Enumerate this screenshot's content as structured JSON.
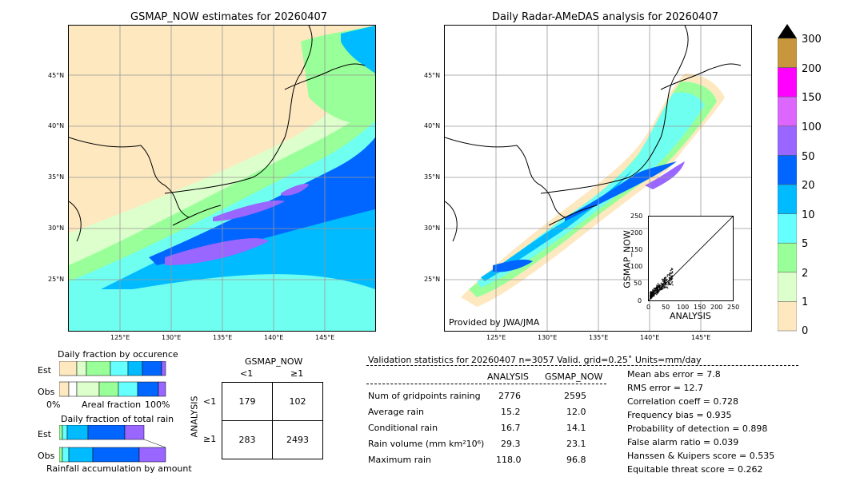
{
  "left_map": {
    "title": "GSMAP_NOW estimates for 20260407",
    "lat_labels": [
      "45°N",
      "40°N",
      "35°N",
      "30°N",
      "25°N"
    ],
    "lon_labels": [
      "125°E",
      "130°E",
      "135°E",
      "140°E",
      "145°E"
    ]
  },
  "right_map": {
    "title": "Daily Radar-AMeDAS analysis for 20260407",
    "lat_labels": [
      "45°N",
      "40°N",
      "35°N",
      "30°N",
      "25°N"
    ],
    "lon_labels": [
      "125°E",
      "130°E",
      "135°E",
      "140°E",
      "145°E"
    ],
    "credit": "Provided by JWA/JMA"
  },
  "colorbar": {
    "labels": [
      "300",
      "200",
      "150",
      "100",
      "50",
      "20",
      "10",
      "5",
      "2",
      "1",
      "0"
    ],
    "colors": [
      "#c8963c",
      "#ff00ff",
      "#dd66ff",
      "#9966ff",
      "#0066ff",
      "#00bbff",
      "#66ffff",
      "#99ff99",
      "#ddffcc",
      "#fde8bf"
    ]
  },
  "scatter": {
    "ylabel": "GSMAP_NOW",
    "xlabel": "ANALYSIS",
    "ticks": [
      "0",
      "50",
      "100",
      "150",
      "200",
      "250"
    ]
  },
  "fraction_occurrence": {
    "title": "Daily fraction by occurence",
    "rows": [
      "Est",
      "Obs"
    ],
    "left": "0%",
    "mid": "Areal fraction",
    "right": "100%"
  },
  "fraction_total": {
    "title": "Daily fraction of total rain",
    "rows": [
      "Est",
      "Obs"
    ],
    "footer": "Rainfall accumulation by amount"
  },
  "contingency": {
    "header": "GSMAP_NOW",
    "cols": [
      "<1",
      "≥1"
    ],
    "rows": [
      "<1",
      "≥1"
    ],
    "side": "ANALYSIS",
    "cells": [
      "179",
      "102",
      "283",
      "2493"
    ]
  },
  "validation": {
    "heading": "Validation statistics for 20260407  n=3057 Valid. grid=0.25˚ Units=mm/day",
    "col_analysis": "ANALYSIS",
    "col_gsmap": "GSMAP_NOW",
    "rows": [
      {
        "label": "Num of gridpoints raining",
        "analysis": "2776",
        "gsmap": "2595"
      },
      {
        "label": "Average rain",
        "analysis": "15.2",
        "gsmap": "12.0"
      },
      {
        "label": "Conditional rain",
        "analysis": "16.7",
        "gsmap": "14.1"
      },
      {
        "label": "Rain volume (mm km²10⁶)",
        "analysis": "29.3",
        "gsmap": "23.1"
      },
      {
        "label": "Maximum rain",
        "analysis": "118.0",
        "gsmap": "96.8"
      }
    ],
    "scores": [
      "Mean abs error =    7.8",
      "RMS error =   12.7",
      "Correlation coeff =  0.728",
      "Frequency bias =  0.935",
      "Probability of detection =  0.898",
      "False alarm ratio =  0.039",
      "Hanssen & Kuipers score =  0.535",
      "Equitable threat score =  0.262"
    ]
  }
}
